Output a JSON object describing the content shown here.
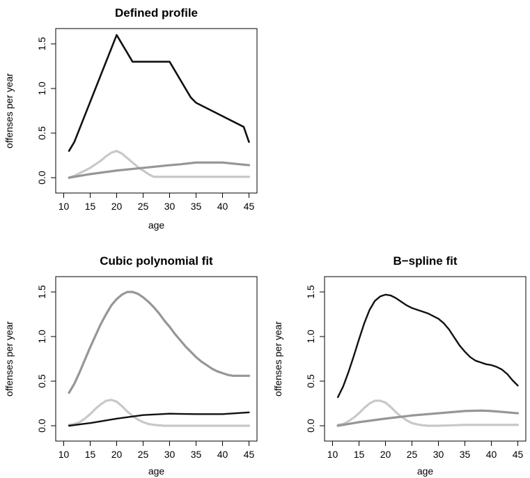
{
  "chart_data": [
    {
      "type": "line",
      "title": "Defined profile",
      "xlabel": "age",
      "ylabel": "offenses per year",
      "xlim": [
        10,
        45
      ],
      "ylim": [
        0,
        1.5
      ],
      "xticks": [
        "10",
        "15",
        "20",
        "25",
        "30",
        "35",
        "40",
        "45"
      ],
      "yticks": [
        "0.0",
        "0.5",
        "1.0",
        "1.5"
      ],
      "series": [
        {
          "color": "#111111",
          "width": 2.6,
          "x": [
            11,
            12,
            20,
            23,
            30,
            34,
            35,
            44,
            45
          ],
          "y": [
            0.3,
            0.4,
            1.6,
            1.3,
            1.3,
            0.9,
            0.84,
            0.57,
            0.4
          ]
        },
        {
          "color": "#c8c8c8",
          "width": 3.2,
          "x": [
            11,
            12,
            13,
            14,
            15,
            16,
            17,
            18,
            19,
            20,
            21,
            22,
            23,
            24,
            25,
            26,
            27,
            30,
            35,
            40,
            45
          ],
          "y": [
            0.0,
            0.02,
            0.05,
            0.08,
            0.11,
            0.15,
            0.19,
            0.24,
            0.28,
            0.3,
            0.27,
            0.22,
            0.17,
            0.12,
            0.08,
            0.04,
            0.01,
            0.01,
            0.01,
            0.01,
            0.01
          ]
        },
        {
          "color": "#969696",
          "width": 3.2,
          "x": [
            11,
            15,
            20,
            25,
            30,
            32,
            35,
            40,
            45
          ],
          "y": [
            0.0,
            0.04,
            0.08,
            0.11,
            0.14,
            0.15,
            0.17,
            0.17,
            0.14
          ]
        }
      ]
    },
    {
      "type": "line",
      "title": "Cubic polynomial fit",
      "xlabel": "age",
      "ylabel": "offenses per year",
      "xlim": [
        10,
        45
      ],
      "ylim": [
        0,
        1.5
      ],
      "xticks": [
        "10",
        "15",
        "20",
        "25",
        "30",
        "35",
        "40",
        "45"
      ],
      "yticks": [
        "0.0",
        "0.5",
        "1.0",
        "1.5"
      ],
      "series": [
        {
          "color": "#969696",
          "width": 3.2,
          "x": [
            11,
            12,
            13,
            14,
            15,
            16,
            17,
            18,
            19,
            20,
            21,
            22,
            23,
            24,
            25,
            26,
            27,
            28,
            29,
            30,
            31,
            32,
            33,
            34,
            35,
            36,
            37,
            38,
            39,
            40,
            41,
            42,
            43,
            44,
            45
          ],
          "y": [
            0.37,
            0.47,
            0.6,
            0.74,
            0.88,
            1.01,
            1.14,
            1.25,
            1.35,
            1.42,
            1.47,
            1.5,
            1.5,
            1.48,
            1.44,
            1.39,
            1.33,
            1.26,
            1.18,
            1.11,
            1.03,
            0.96,
            0.89,
            0.83,
            0.77,
            0.72,
            0.68,
            0.64,
            0.61,
            0.59,
            0.57,
            0.56,
            0.56,
            0.56,
            0.56
          ]
        },
        {
          "color": "#c8c8c8",
          "width": 3.2,
          "x": [
            11,
            12,
            13,
            14,
            15,
            16,
            17,
            18,
            19,
            20,
            21,
            22,
            23,
            24,
            25,
            26,
            27,
            28,
            29,
            30,
            35,
            40,
            45
          ],
          "y": [
            0.01,
            0.02,
            0.04,
            0.08,
            0.13,
            0.19,
            0.24,
            0.28,
            0.29,
            0.27,
            0.22,
            0.16,
            0.11,
            0.07,
            0.04,
            0.02,
            0.01,
            0.005,
            0.0,
            0.0,
            0.0,
            0.0,
            0.0
          ]
        },
        {
          "color": "#111111",
          "width": 2.4,
          "x": [
            11,
            15,
            20,
            25,
            30,
            35,
            40,
            45
          ],
          "y": [
            0.0,
            0.03,
            0.08,
            0.12,
            0.135,
            0.13,
            0.13,
            0.15
          ]
        }
      ]
    },
    {
      "type": "line",
      "title": "B−spline fit",
      "xlabel": "age",
      "ylabel": "offenses per year",
      "xlim": [
        10,
        45
      ],
      "ylim": [
        0,
        1.5
      ],
      "xticks": [
        "10",
        "15",
        "20",
        "25",
        "30",
        "35",
        "40",
        "45"
      ],
      "yticks": [
        "0.0",
        "0.5",
        "1.0",
        "1.5"
      ],
      "series": [
        {
          "color": "#111111",
          "width": 2.4,
          "x": [
            11,
            12,
            13,
            14,
            15,
            16,
            17,
            18,
            19,
            20,
            21,
            22,
            23,
            24,
            25,
            26,
            27,
            28,
            29,
            30,
            31,
            32,
            33,
            34,
            35,
            36,
            37,
            38,
            39,
            40,
            41,
            42,
            43,
            44,
            45
          ],
          "y": [
            0.32,
            0.44,
            0.6,
            0.78,
            0.97,
            1.15,
            1.3,
            1.4,
            1.45,
            1.47,
            1.46,
            1.43,
            1.39,
            1.35,
            1.32,
            1.3,
            1.28,
            1.26,
            1.23,
            1.2,
            1.15,
            1.08,
            0.99,
            0.9,
            0.83,
            0.77,
            0.73,
            0.71,
            0.69,
            0.68,
            0.66,
            0.63,
            0.58,
            0.51,
            0.45
          ]
        },
        {
          "color": "#c8c8c8",
          "width": 3.2,
          "x": [
            11,
            12,
            13,
            14,
            15,
            16,
            17,
            18,
            19,
            20,
            21,
            22,
            23,
            24,
            25,
            26,
            27,
            28,
            29,
            30,
            35,
            40,
            45
          ],
          "y": [
            0.01,
            0.02,
            0.05,
            0.09,
            0.14,
            0.2,
            0.25,
            0.28,
            0.28,
            0.26,
            0.21,
            0.15,
            0.1,
            0.06,
            0.03,
            0.015,
            0.005,
            0.0,
            0.0,
            0.0,
            0.01,
            0.01,
            0.01
          ]
        },
        {
          "color": "#969696",
          "width": 3.2,
          "x": [
            11,
            15,
            20,
            25,
            30,
            35,
            38,
            40,
            45
          ],
          "y": [
            0.0,
            0.04,
            0.08,
            0.115,
            0.14,
            0.165,
            0.17,
            0.165,
            0.14
          ]
        }
      ]
    }
  ]
}
